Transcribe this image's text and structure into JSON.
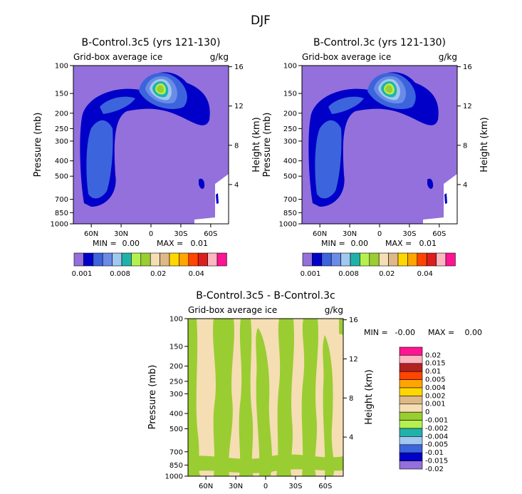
{
  "page_title": "DJF",
  "chart_data": [
    {
      "type": "contour",
      "title": "B-Control.3c5 (yrs 121-130)",
      "field_label": "Grid-box average ice",
      "units": "g/kg",
      "ylabel": "Pressure (mb)",
      "ylabel_right": "Height (km)",
      "pressure_ticks": [
        "100",
        "150",
        "200",
        "250",
        "300",
        "400",
        "500",
        "700",
        "850",
        "1000"
      ],
      "height_ticks": [
        "16",
        "12",
        "8",
        "4"
      ],
      "x_ticks": [
        "60N",
        "30N",
        "0",
        "30S",
        "60S"
      ],
      "stats": {
        "min_label": "MIN =",
        "min": "0.00",
        "max_label": "MAX =",
        "max": "0.01"
      },
      "colorbar_labels": [
        "0.001",
        "0.008",
        "0.02",
        "0.04"
      ],
      "levels": [
        0.001,
        0.002,
        0.004,
        0.006,
        0.008,
        0.01,
        0.015,
        0.02,
        0.025,
        0.03,
        0.035,
        0.04,
        0.045,
        0.05
      ]
    },
    {
      "type": "contour",
      "title": "B-Control.3c (yrs 121-130)",
      "field_label": "Grid-box average ice",
      "units": "g/kg",
      "ylabel": "Pressure (mb)",
      "ylabel_right": "Height (km)",
      "pressure_ticks": [
        "100",
        "150",
        "200",
        "250",
        "300",
        "400",
        "500",
        "700",
        "850",
        "1000"
      ],
      "height_ticks": [
        "16",
        "12",
        "8",
        "4"
      ],
      "x_ticks": [
        "60N",
        "30N",
        "0",
        "30S",
        "60S"
      ],
      "stats": {
        "min_label": "MIN =",
        "min": "0.00",
        "max_label": "MAX =",
        "max": "0.01"
      },
      "colorbar_labels": [
        "0.001",
        "0.008",
        "0.02",
        "0.04"
      ],
      "levels": [
        0.001,
        0.002,
        0.004,
        0.006,
        0.008,
        0.01,
        0.015,
        0.02,
        0.025,
        0.03,
        0.035,
        0.04,
        0.045,
        0.05
      ]
    },
    {
      "type": "contour",
      "title": "B-Control.3c5 - B-Control.3c",
      "field_label": "Grid-box average ice",
      "units": "g/kg",
      "ylabel": "Pressure (mb)",
      "ylabel_right": "Height (km)",
      "pressure_ticks": [
        "100",
        "150",
        "200",
        "250",
        "300",
        "400",
        "500",
        "700",
        "850",
        "1000"
      ],
      "height_ticks": [
        "16",
        "12",
        "8",
        "4"
      ],
      "x_ticks": [
        "60N",
        "30N",
        "0",
        "30S",
        "60S"
      ],
      "stats": {
        "min_label": "MIN =",
        "min": "-0.00",
        "max_label": "MAX =",
        "max": "0.00"
      },
      "colorbar_labels": [
        "0.02",
        "0.015",
        "0.01",
        "0.005",
        "0.004",
        "0.002",
        "0.001",
        "0",
        "-0.001",
        "-0.002",
        "-0.004",
        "-0.005",
        "-0.01",
        "-0.015",
        "-0.02"
      ]
    }
  ],
  "colors": {
    "seq": [
      "#9370db",
      "#0000c8",
      "#3c64dc",
      "#6a8ce6",
      "#a0c8f0",
      "#20b2aa",
      "#b4f050",
      "#9acd32",
      "#f5deb3",
      "#deb887",
      "#ffd700",
      "#ffa500",
      "#ff4500",
      "#dc1e1e",
      "#ffb6c1",
      "#ff1493"
    ],
    "diff": [
      "#ff1493",
      "#ffb6c1",
      "#b22222",
      "#ff4500",
      "#ffa500",
      "#ffd700",
      "#deb887",
      "#f5deb3",
      "#9acd32",
      "#b4f050",
      "#20b2aa",
      "#a0c8f0",
      "#3c64dc",
      "#0000c8",
      "#9370db"
    ]
  }
}
